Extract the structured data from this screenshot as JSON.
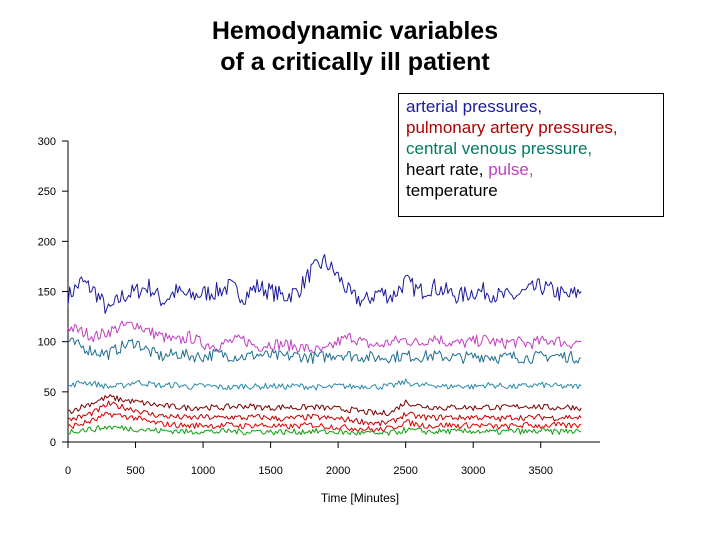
{
  "title": {
    "line1": "Hemodynamic variables",
    "line2": "of a critically ill patient"
  },
  "legend": {
    "line1": "arterial pressures,",
    "line2": "pulmonary artery pressures,",
    "line3": "central venous pressure,",
    "line4_a": "heart rate, ",
    "line4_b": "pulse,",
    "line5": "temperature",
    "colors": {
      "arterial": "#1a1a9c",
      "pulmonary": "#b00000",
      "central_venous": "#007a60",
      "heart_rate": "#000000",
      "pulse": "#c040c0",
      "temperature": "#000000"
    }
  },
  "chart_data": {
    "type": "line",
    "title": "Hemodynamic variables of a critically ill patient",
    "xlabel": "Time [Minutes]",
    "ylabel": "",
    "xlim": [
      0,
      3850
    ],
    "ylim": [
      0,
      300
    ],
    "x_ticks": [
      "0",
      "500",
      "1000",
      "1500",
      "2000",
      "2500",
      "3000",
      "3500"
    ],
    "y_ticks": [
      "0",
      "50",
      "100",
      "150",
      "200",
      "250",
      "300"
    ],
    "x_tick_values": [
      0,
      500,
      1000,
      1500,
      2000,
      2500,
      3000,
      3500
    ],
    "y_tick_values": [
      0,
      50,
      100,
      150,
      200,
      250,
      300
    ],
    "x": [
      0,
      100,
      200,
      300,
      400,
      500,
      600,
      700,
      800,
      900,
      1000,
      1100,
      1200,
      1300,
      1400,
      1500,
      1600,
      1700,
      1800,
      1900,
      2000,
      2100,
      2200,
      2300,
      2400,
      2500,
      2600,
      2700,
      2800,
      2900,
      3000,
      3100,
      3200,
      3300,
      3400,
      3500,
      3600,
      3700,
      3800
    ],
    "series": [
      {
        "color": "#1a1a9c",
        "values": [
          145,
          160,
          150,
          130,
          145,
          150,
          155,
          140,
          150,
          145,
          148,
          150,
          155,
          145,
          155,
          150,
          145,
          150,
          170,
          180,
          165,
          145,
          140,
          150,
          145,
          160,
          150,
          155,
          150,
          145,
          150,
          150,
          145,
          145,
          150,
          155,
          150,
          145,
          150
        ]
      },
      {
        "color": "#c040c0",
        "values": [
          115,
          110,
          105,
          110,
          115,
          118,
          110,
          105,
          100,
          105,
          98,
          96,
          100,
          102,
          95,
          98,
          97,
          95,
          92,
          90,
          100,
          105,
          98,
          96,
          100,
          102,
          98,
          105,
          100,
          98,
          100,
          102,
          98,
          100,
          98,
          100,
          102,
          98,
          100
        ]
      },
      {
        "color": "#1f6f8f",
        "values": [
          100,
          95,
          90,
          88,
          95,
          100,
          90,
          85,
          88,
          86,
          85,
          88,
          86,
          85,
          87,
          86,
          85,
          86,
          84,
          85,
          88,
          86,
          85,
          84,
          85,
          86,
          85,
          86,
          85,
          84,
          85,
          86,
          84,
          85,
          84,
          85,
          86,
          85,
          84
        ]
      },
      {
        "color": "#2a8aa8",
        "values": [
          55,
          60,
          58,
          55,
          56,
          60,
          58,
          56,
          57,
          55,
          56,
          55,
          54,
          56,
          55,
          56,
          55,
          56,
          55,
          54,
          56,
          55,
          56,
          55,
          56,
          60,
          56,
          57,
          55,
          56,
          55,
          57,
          56,
          55,
          56,
          57,
          56,
          55,
          56
        ]
      },
      {
        "color": "#7a0000",
        "values": [
          30,
          35,
          40,
          45,
          42,
          40,
          38,
          36,
          35,
          34,
          35,
          34,
          35,
          36,
          35,
          34,
          35,
          34,
          35,
          34,
          33,
          32,
          30,
          28,
          30,
          40,
          36,
          35,
          34,
          35,
          34,
          35,
          34,
          35,
          36,
          35,
          34,
          35,
          34
        ]
      },
      {
        "color": "#c00000",
        "values": [
          22,
          25,
          30,
          38,
          35,
          32,
          28,
          26,
          25,
          24,
          25,
          24,
          25,
          24,
          25,
          24,
          23,
          24,
          25,
          24,
          23,
          22,
          20,
          18,
          20,
          28,
          25,
          24,
          25,
          24,
          25,
          24,
          23,
          25,
          24,
          25,
          24,
          25,
          24
        ]
      },
      {
        "color": "#e00000",
        "values": [
          15,
          18,
          22,
          28,
          26,
          24,
          20,
          18,
          17,
          16,
          17,
          16,
          17,
          16,
          17,
          16,
          15,
          16,
          17,
          16,
          15,
          14,
          13,
          12,
          14,
          20,
          17,
          16,
          17,
          16,
          17,
          16,
          15,
          16,
          17,
          16,
          17,
          16,
          17
        ]
      },
      {
        "color": "#10a010",
        "values": [
          10,
          12,
          13,
          15,
          14,
          13,
          12,
          11,
          11,
          10,
          11,
          10,
          11,
          10,
          11,
          10,
          10,
          10,
          11,
          10,
          10,
          9,
          9,
          8,
          9,
          12,
          11,
          10,
          11,
          10,
          11,
          10,
          10,
          11,
          10,
          11,
          10,
          11,
          10
        ]
      }
    ],
    "grid": false,
    "legend_position": "top-right"
  }
}
